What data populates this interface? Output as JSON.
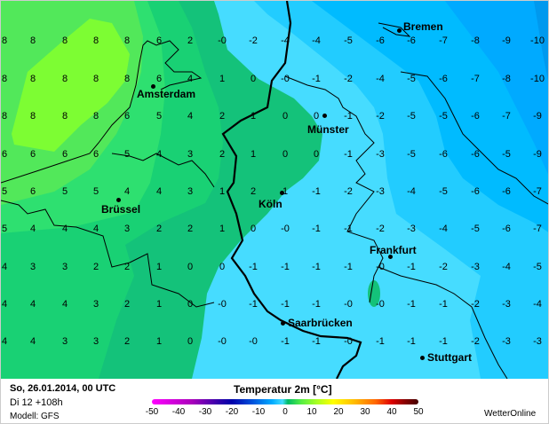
{
  "map": {
    "grid_values": [
      [
        "8",
        "8",
        "8",
        "8",
        "8",
        "6",
        "2",
        "-0",
        "-2",
        "-4",
        "-4",
        "-5",
        "-6",
        "-6",
        "-7",
        "-8",
        "-9",
        "-10"
      ],
      [
        "8",
        "8",
        "8",
        "8",
        "8",
        "6",
        "4",
        "1",
        "0",
        "-0",
        "-1",
        "-2",
        "-4",
        "-5",
        "-6",
        "-7",
        "-8",
        "-10"
      ],
      [
        "8",
        "8",
        "8",
        "8",
        "6",
        "5",
        "4",
        "2",
        "1",
        "0",
        "0",
        "-1",
        "-2",
        "-5",
        "-5",
        "-6",
        "-7",
        "-9"
      ],
      [
        "6",
        "6",
        "6",
        "6",
        "5",
        "4",
        "3",
        "2",
        "1",
        "0",
        "0",
        "-1",
        "-3",
        "-5",
        "-6",
        "-6",
        "-5",
        "-9"
      ],
      [
        "5",
        "6",
        "5",
        "5",
        "4",
        "4",
        "3",
        "1",
        "2",
        "1",
        "-1",
        "-2",
        "-3",
        "-4",
        "-5",
        "-6",
        "-6",
        "-7"
      ],
      [
        "5",
        "4",
        "4",
        "4",
        "3",
        "2",
        "2",
        "1",
        "0",
        "-0",
        "-1",
        "-1",
        "-2",
        "-3",
        "-4",
        "-5",
        "-6",
        "-7"
      ],
      [
        "4",
        "3",
        "3",
        "2",
        "2",
        "1",
        "0",
        "0",
        "-1",
        "-1",
        "-1",
        "-1",
        "-0",
        "-1",
        "-2",
        "-3",
        "-4",
        "-5"
      ],
      [
        "4",
        "4",
        "4",
        "3",
        "2",
        "1",
        "0",
        "-0",
        "-1",
        "-1",
        "-1",
        "-0",
        "-0",
        "-1",
        "-1",
        "-2",
        "-3",
        "-4"
      ],
      [
        "4",
        "4",
        "3",
        "3",
        "2",
        "1",
        "0",
        "-0",
        "-0",
        "-1",
        "-1",
        "-0",
        "-1",
        "-1",
        "-1",
        "-2",
        "-3",
        "-3"
      ]
    ],
    "cities": [
      {
        "name": "Bremen"
      },
      {
        "name": "Amsterdam"
      },
      {
        "name": "Münster"
      },
      {
        "name": "Köln"
      },
      {
        "name": "Brüssel"
      },
      {
        "name": "Frankfurt"
      },
      {
        "name": "Saarbrücken"
      },
      {
        "name": "Stuttgart"
      }
    ],
    "colors": {
      "lime": "#7dfd33",
      "green8": "#52e85a",
      "green6": "#2ee070",
      "green4": "#19d174",
      "green2": "#14c27a",
      "cyan0": "#46dcff",
      "cyan2": "#22ccff",
      "blue4": "#00bbff",
      "blue6": "#00aaff",
      "blue8": "#0099ee"
    }
  },
  "footer": {
    "run_time": "So, 26.01.2014, 00 UTC",
    "valid_time": "Di 12 +108h",
    "model": "Modell: GFS",
    "title": "Temperatur 2m [°C]",
    "scale_ticks": [
      "-50",
      "-40",
      "-30",
      "-20",
      "-10",
      "0",
      "10",
      "20",
      "30",
      "40",
      "50"
    ],
    "brand": "WetterOnline"
  }
}
